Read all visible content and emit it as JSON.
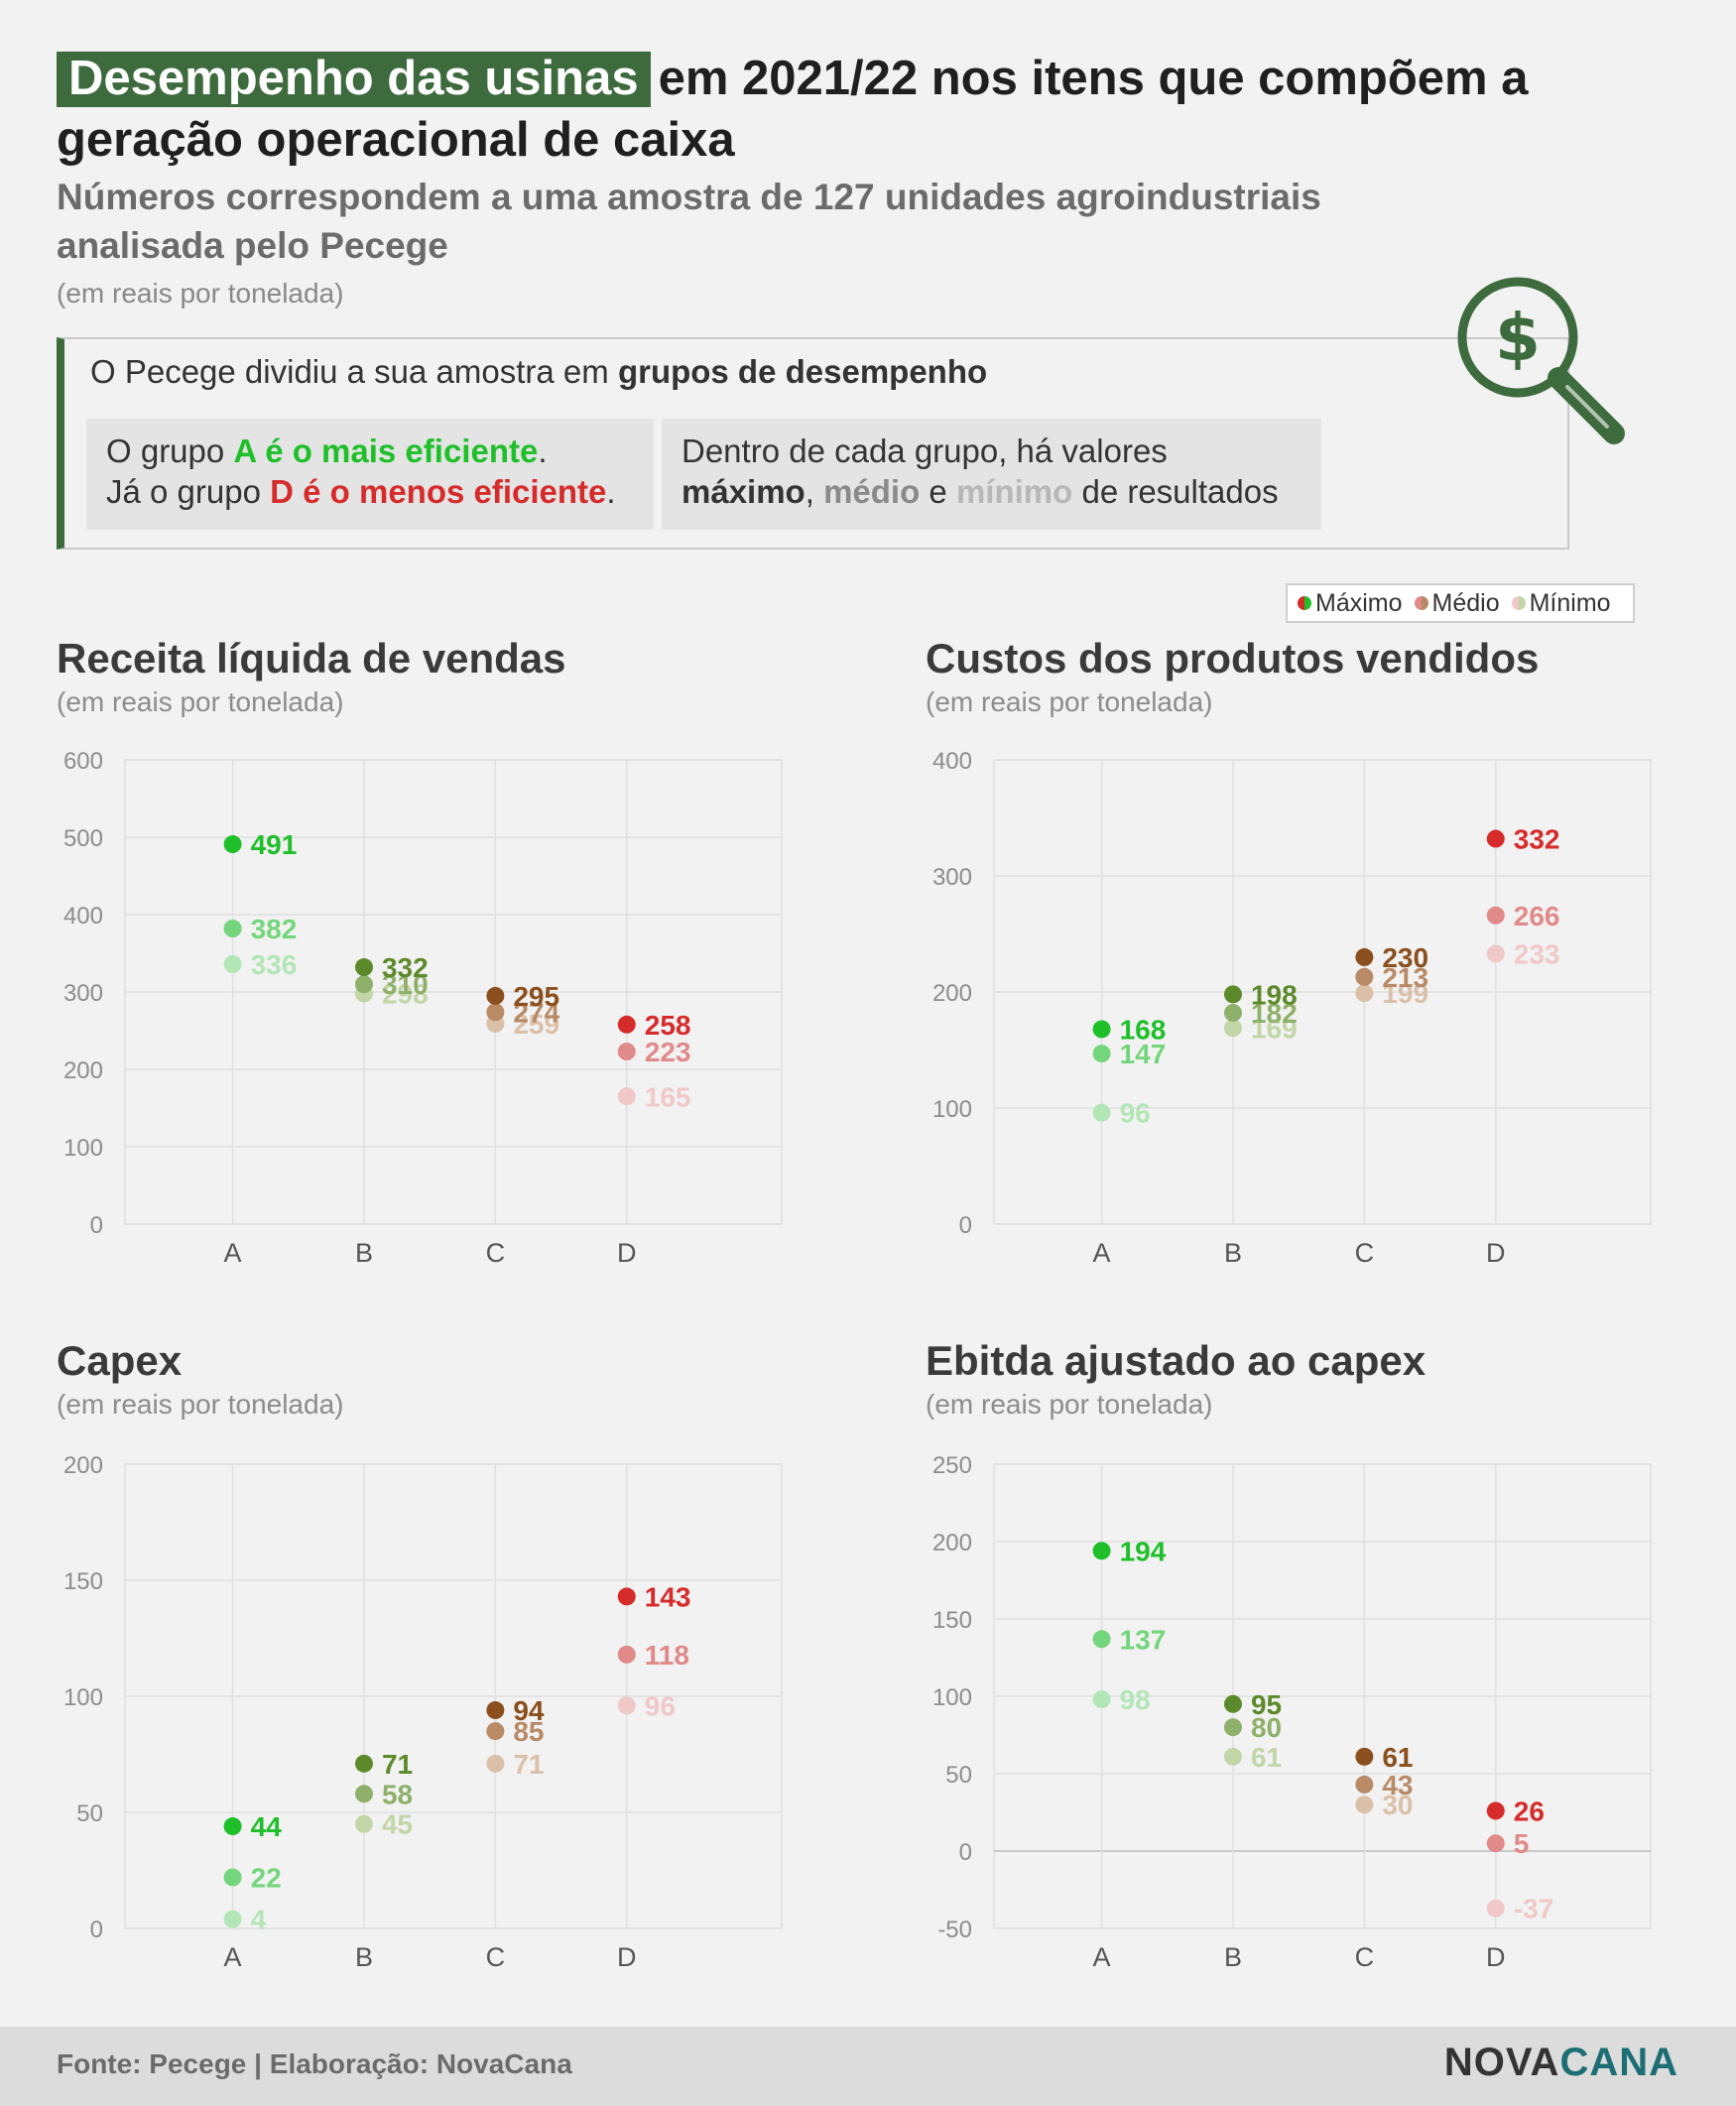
{
  "header": {
    "title_highlight": "Desempenho das usinas",
    "title_rest": "em 2021/22 nos itens que compõem a geração operacional de caixa",
    "subtitle": "Números correspondem a uma amostra de 127 unidades agroindustriais analisada pelo Pecege",
    "unit": "(em reais por tonelada)"
  },
  "info": {
    "intro_text": "O Pecege dividiu a sua amostra em ",
    "intro_bold": "grupos de desempenho",
    "panel_a_line1_pre": "O grupo ",
    "panel_a_line1_bold": "A é o mais eficiente",
    "panel_a_line1_post": ".",
    "panel_a_line2_pre": "Já o grupo ",
    "panel_a_line2_bold": "D é o menos eficiente",
    "panel_a_line2_post": ".",
    "panel_b_line1": "Dentro de cada grupo, há valores",
    "panel_b_max": "máximo",
    "panel_b_sep1": ", ",
    "panel_b_med": "médio",
    "panel_b_sep2": " e ",
    "panel_b_min": "mínimo",
    "panel_b_end": " de resultados"
  },
  "legend": {
    "max": "Máximo",
    "med": "Médio",
    "min": "Mínimo"
  },
  "colors": {
    "A": [
      "#1fbf2a",
      "#74d67c",
      "#b3e6b6"
    ],
    "B": [
      "#5c8a2a",
      "#8fb06a",
      "#c2d6a8"
    ],
    "C": [
      "#8b4f1d",
      "#b88a66",
      "#dbc0a8"
    ],
    "D": [
      "#d62b2b",
      "#e08a8a",
      "#f0c8c8"
    ]
  },
  "chart_data": [
    {
      "type": "scatter",
      "title": "Receita líquida de vendas",
      "unit": "(em reais por tonelada)",
      "categories": [
        "A",
        "B",
        "C",
        "D"
      ],
      "ylim": [
        0,
        600
      ],
      "yticks": [
        0,
        100,
        200,
        300,
        400,
        500,
        600
      ],
      "series": [
        {
          "name": "Máximo",
          "values": [
            491,
            332,
            295,
            258
          ]
        },
        {
          "name": "Médio",
          "values": [
            382,
            310,
            274,
            223
          ]
        },
        {
          "name": "Mínimo",
          "values": [
            336,
            298,
            259,
            165
          ]
        }
      ]
    },
    {
      "type": "scatter",
      "title": "Custos dos produtos vendidos",
      "unit": "(em reais por tonelada)",
      "categories": [
        "A",
        "B",
        "C",
        "D"
      ],
      "ylim": [
        0,
        400
      ],
      "yticks": [
        0,
        100,
        200,
        300,
        400
      ],
      "series": [
        {
          "name": "Máximo",
          "values": [
            168,
            198,
            230,
            332
          ]
        },
        {
          "name": "Médio",
          "values": [
            147,
            182,
            213,
            266
          ]
        },
        {
          "name": "Mínimo",
          "values": [
            96,
            169,
            199,
            233
          ]
        }
      ]
    },
    {
      "type": "scatter",
      "title": "Capex",
      "unit": "(em reais por tonelada)",
      "categories": [
        "A",
        "B",
        "C",
        "D"
      ],
      "ylim": [
        0,
        200
      ],
      "yticks": [
        0,
        50,
        100,
        150,
        200
      ],
      "series": [
        {
          "name": "Máximo",
          "values": [
            44,
            71,
            94,
            143
          ]
        },
        {
          "name": "Médio",
          "values": [
            22,
            58,
            85,
            118
          ]
        },
        {
          "name": "Mínimo",
          "values": [
            4,
            45,
            71,
            96
          ]
        }
      ]
    },
    {
      "type": "scatter",
      "title": "Ebitda ajustado ao capex",
      "unit": "(em reais por tonelada)",
      "categories": [
        "A",
        "B",
        "C",
        "D"
      ],
      "ylim": [
        -50,
        250
      ],
      "yticks": [
        -50,
        0,
        50,
        100,
        150,
        200,
        250
      ],
      "series": [
        {
          "name": "Máximo",
          "values": [
            194,
            95,
            61,
            26
          ]
        },
        {
          "name": "Médio",
          "values": [
            137,
            80,
            43,
            5
          ]
        },
        {
          "name": "Mínimo",
          "values": [
            98,
            61,
            30,
            -37
          ]
        }
      ]
    }
  ],
  "footer": {
    "source": "Fonte: Pecege | Elaboração: NovaCana",
    "logo_a": "NOVA",
    "logo_b": "CANA"
  }
}
